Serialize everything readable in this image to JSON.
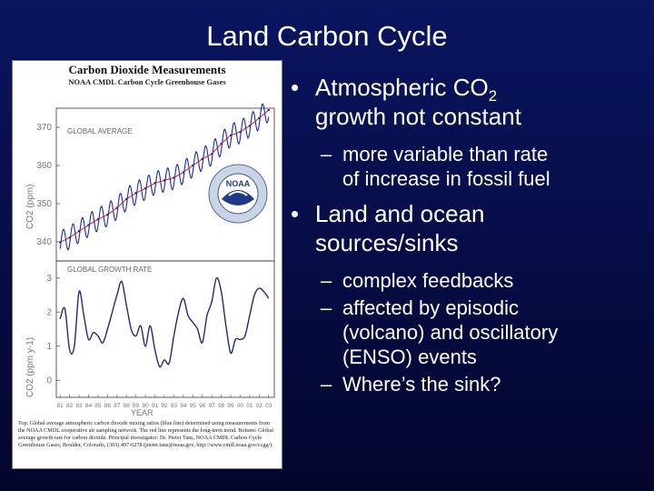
{
  "slide": {
    "title": "Land Carbon Cycle",
    "bullets": [
      {
        "prefix": "Atmospheric CO",
        "sub": "2",
        "suffix": "",
        "line2": "growth not constant"
      },
      {
        "text": "Land and ocean",
        "line2": "sources/sinks"
      }
    ],
    "sub_bullets_1": [
      {
        "text": "more variable than rate",
        "line2": "of increase in fossil fuel"
      }
    ],
    "sub_bullets_2": [
      {
        "text": "complex feedbacks",
        "line2": ""
      },
      {
        "text": "affected by episodic",
        "line2": "(volcano) and oscillatory",
        "line3": "(ENSO) events"
      },
      {
        "text": "Where’s the sink?",
        "line2": ""
      }
    ],
    "bullet_glyph": "•",
    "dash_glyph": "–"
  },
  "figure": {
    "title": "Carbon Dioxide Measurements",
    "subtitle": "NOAA CMDL Carbon Cycle Greenhouse Gases",
    "caption": "Top: Global average atmospheric carbon dioxide mixing ratios (blue line) determined using measurements from the NOAA CMDL cooperative air sampling network. The red line represents the long-term trend. Bottom: Global average growth rate for carbon dioxide. Principal investigator: Dr. Pieter Tans, NOAA CMDL Carbon Cycle Greenhouse Gases, Boulder, Colorado, (303) 497-6278 (pieter.tans@noaa.gov, http://www.cmdl.noaa.gov/ccgg/)."
  },
  "chart_data": [
    {
      "type": "line",
      "title": "GLOBAL AVERAGE",
      "ylabel": "CO2 (ppm)",
      "ylim": [
        335,
        375
      ],
      "yticks": [
        "370",
        "360",
        "350",
        "340"
      ],
      "x": [
        1981,
        1982,
        1983,
        1984,
        1985,
        1986,
        1987,
        1988,
        1989,
        1990,
        1991,
        1992,
        1993,
        1994,
        1995,
        1996,
        1997,
        1998,
        1999,
        2000,
        2001,
        2002,
        2003
      ],
      "series": [
        {
          "values": [
            339.9,
            341.1,
            342.8,
            344.4,
            345.9,
            347.1,
            348.9,
            351.2,
            352.8,
            354.0,
            355.4,
            356.1,
            356.8,
            358.2,
            360.0,
            361.7,
            363.0,
            365.7,
            367.9,
            368.8,
            370.4,
            372.4,
            374.5
          ],
          "color": "#1a2aa8",
          "seasonal_amplitude_ppm": 3
        }
      ],
      "trend_color": "#cc2222"
    },
    {
      "type": "line",
      "title": "GLOBAL GROWTH RATE",
      "ylabel": "CO2 (ppm y-1)",
      "xlabel": "YEAR",
      "ylim": [
        -0.5,
        3.5
      ],
      "yticks": [
        "3",
        "2",
        "1",
        "0"
      ],
      "xticks": [
        "81",
        "82",
        "83",
        "84",
        "85",
        "86",
        "87",
        "88",
        "89",
        "90",
        "91",
        "92",
        "93",
        "94",
        "95",
        "96",
        "97",
        "98",
        "99",
        "00",
        "01",
        "02",
        "03"
      ],
      "x": [
        1981,
        1981.5,
        1982,
        1982.5,
        1983,
        1983.5,
        1984,
        1984.5,
        1985,
        1985.5,
        1986,
        1986.5,
        1987,
        1987.5,
        1988,
        1988.5,
        1989,
        1989.5,
        1990,
        1990.5,
        1991,
        1991.5,
        1992,
        1992.5,
        1993,
        1993.5,
        1994,
        1994.5,
        1995,
        1995.5,
        1996,
        1996.5,
        1997,
        1997.5,
        1998,
        1998.5,
        1999,
        1999.5,
        2000,
        2000.5,
        2001,
        2001.5,
        2002,
        2002.5,
        2003
      ],
      "series": [
        {
          "values": [
            1.8,
            2.1,
            0.9,
            1.0,
            2.6,
            1.9,
            1.2,
            1.4,
            1.3,
            1.1,
            1.5,
            2.0,
            2.5,
            2.9,
            2.2,
            1.5,
            1.3,
            1.6,
            1.0,
            1.6,
            0.9,
            0.4,
            0.6,
            0.5,
            1.3,
            2.0,
            2.4,
            1.9,
            1.7,
            1.5,
            1.1,
            1.9,
            2.3,
            3.0,
            2.6,
            1.6,
            0.8,
            1.2,
            1.2,
            1.3,
            1.9,
            2.5,
            2.7,
            2.6,
            2.4
          ],
          "color": "#222a77"
        }
      ]
    }
  ]
}
